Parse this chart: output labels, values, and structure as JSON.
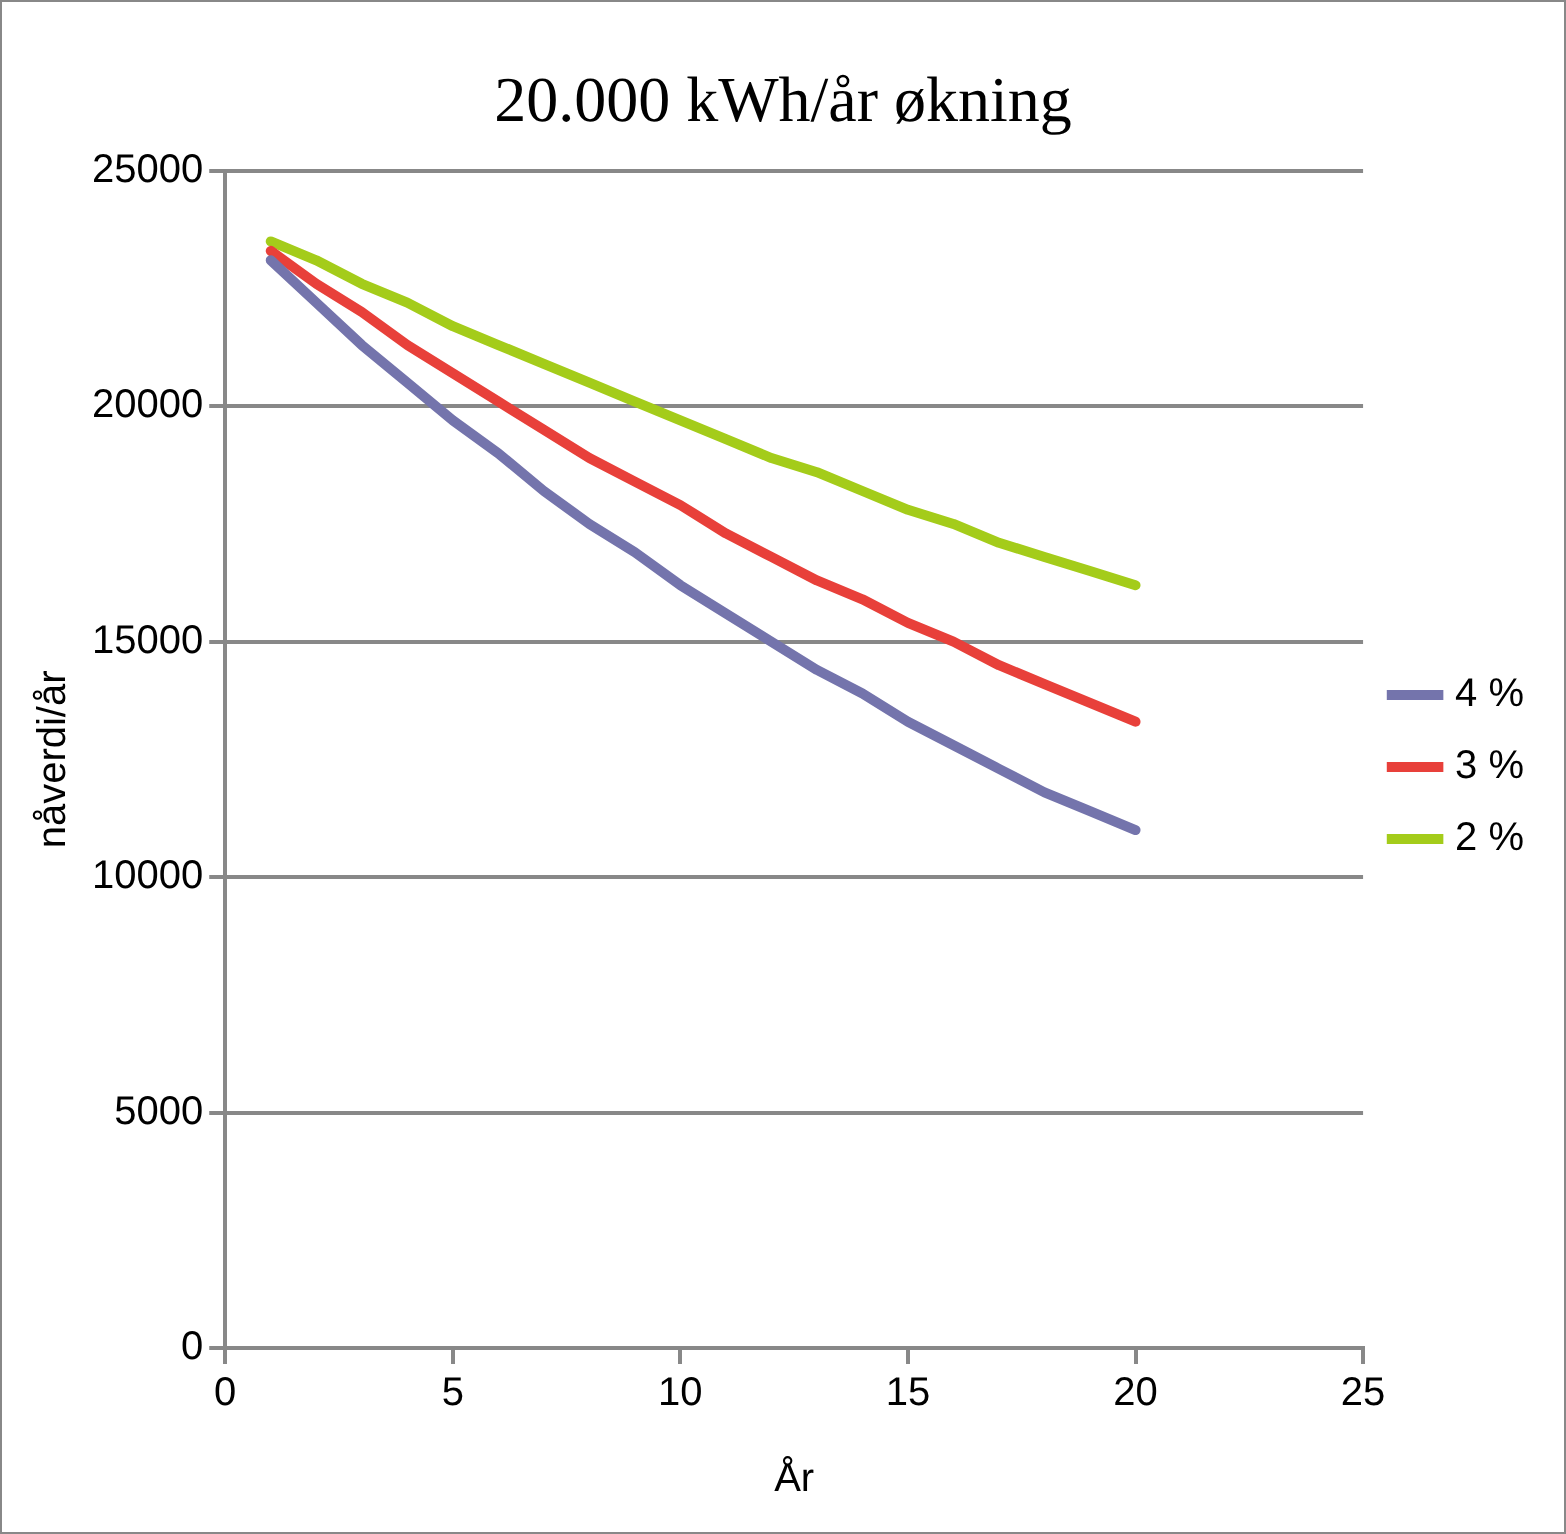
{
  "chart_data": {
    "type": "line",
    "title": "20.000 kWh/år økning",
    "xlabel": "År",
    "ylabel": "nåverdi/år",
    "x": [
      1,
      2,
      3,
      4,
      5,
      6,
      7,
      8,
      9,
      10,
      11,
      12,
      13,
      14,
      15,
      16,
      17,
      18,
      19,
      20
    ],
    "series": [
      {
        "name": "4 %",
        "color": "#7474ac",
        "values": [
          23100,
          22200,
          21300,
          20500,
          19700,
          19000,
          18200,
          17500,
          16900,
          16200,
          15600,
          15000,
          14400,
          13900,
          13300,
          12800,
          12300,
          11800,
          11400,
          11000
        ]
      },
      {
        "name": "3 %",
        "color": "#e8403a",
        "values": [
          23300,
          22600,
          22000,
          21300,
          20700,
          20100,
          19500,
          18900,
          18400,
          17900,
          17300,
          16800,
          16300,
          15900,
          15400,
          15000,
          14500,
          14100,
          13700,
          13300
        ]
      },
      {
        "name": "2 %",
        "color": "#a4cc1a",
        "values": [
          23500,
          23100,
          22600,
          22200,
          21700,
          21300,
          20900,
          20500,
          20100,
          19700,
          19300,
          18900,
          18600,
          18200,
          17800,
          17500,
          17100,
          16800,
          16500,
          16200
        ]
      }
    ],
    "xlim": [
      0,
      25
    ],
    "xticks": [
      0,
      5,
      10,
      15,
      20,
      25
    ],
    "ylim": [
      0,
      25000
    ],
    "yticks": [
      0,
      5000,
      10000,
      15000,
      20000,
      25000
    ],
    "grid": "y",
    "legend": "right",
    "marker": "none",
    "line_style": "solid"
  }
}
